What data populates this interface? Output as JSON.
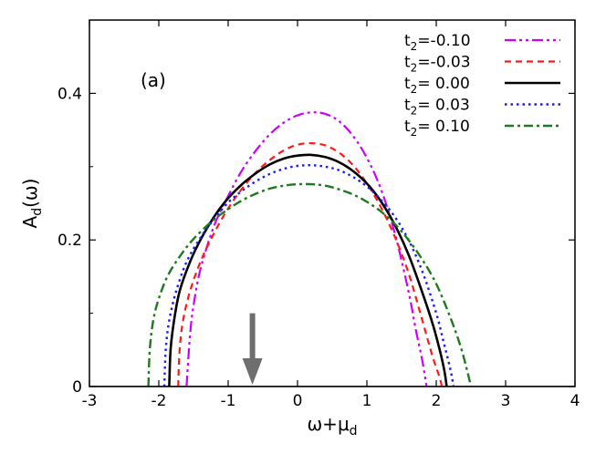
{
  "chart_data": {
    "type": "line",
    "panel_label": "(a)",
    "xlabel": {
      "main": "ω+μ",
      "sub": "d"
    },
    "ylabel": {
      "main": "A",
      "sub": "d",
      "tail": "(ω)"
    },
    "xlim": [
      -3,
      4
    ],
    "ylim": [
      0,
      0.5
    ],
    "x_ticks": [
      -3,
      -2,
      -1,
      0,
      1,
      2,
      3,
      4
    ],
    "x_tick_labels": [
      "-3",
      "-2",
      "-1",
      "0",
      "1",
      "2",
      "3",
      "4"
    ],
    "y_ticks": [
      0,
      0.2,
      0.4
    ],
    "y_tick_labels": [
      "0",
      "0.2",
      "0.4"
    ],
    "grid": false,
    "legend_position": "top-right",
    "arrow": {
      "x": -0.65,
      "y_top": 0.1,
      "y_bottom": 0.0,
      "color": "#6e6e6e"
    },
    "series": [
      {
        "name": "t2=-0.10",
        "label_main": "t",
        "label_sub": "2",
        "label_tail": "=-0.10",
        "color": "#cc00ff",
        "dash": "12,4,3,4,3,4",
        "width": 2.2,
        "x": [
          -1.6,
          -1.55,
          -1.5,
          -1.4,
          -1.2,
          -1.0,
          -0.8,
          -0.6,
          -0.4,
          -0.2,
          0.0,
          0.2,
          0.4,
          0.6,
          0.8,
          1.0,
          1.2,
          1.4,
          1.6,
          1.7,
          1.8,
          1.86
        ],
        "y": [
          0.0,
          0.07,
          0.11,
          0.16,
          0.22,
          0.26,
          0.295,
          0.322,
          0.344,
          0.36,
          0.37,
          0.374,
          0.372,
          0.362,
          0.342,
          0.312,
          0.27,
          0.21,
          0.13,
          0.08,
          0.035,
          0.0
        ]
      },
      {
        "name": "t2=-0.03",
        "label_main": "t",
        "label_sub": "2",
        "label_tail": "=-0.03",
        "color": "#ff1a1a",
        "dash": "7,5",
        "width": 2.2,
        "x": [
          -1.72,
          -1.7,
          -1.65,
          -1.55,
          -1.4,
          -1.2,
          -1.0,
          -0.8,
          -0.6,
          -0.4,
          -0.2,
          0.0,
          0.2,
          0.4,
          0.6,
          0.8,
          1.0,
          1.2,
          1.4,
          1.6,
          1.8,
          1.95,
          2.05,
          2.08
        ],
        "y": [
          0.0,
          0.05,
          0.09,
          0.13,
          0.17,
          0.21,
          0.243,
          0.27,
          0.292,
          0.309,
          0.322,
          0.33,
          0.332,
          0.329,
          0.319,
          0.302,
          0.277,
          0.245,
          0.205,
          0.155,
          0.09,
          0.04,
          0.012,
          0.0
        ]
      },
      {
        "name": "t2=0.00",
        "label_main": "t",
        "label_sub": "2",
        "label_tail": "= 0.00",
        "color": "#000000",
        "dash": "",
        "width": 2.6,
        "x": [
          -1.85,
          -1.83,
          -1.78,
          -1.7,
          -1.55,
          -1.4,
          -1.2,
          -1.0,
          -0.8,
          -0.6,
          -0.4,
          -0.2,
          0.0,
          0.2,
          0.4,
          0.6,
          0.8,
          1.0,
          1.2,
          1.4,
          1.6,
          1.8,
          1.95,
          2.05,
          2.12,
          2.15
        ],
        "y": [
          0.0,
          0.05,
          0.09,
          0.13,
          0.17,
          0.2,
          0.232,
          0.257,
          0.276,
          0.291,
          0.303,
          0.311,
          0.315,
          0.316,
          0.313,
          0.306,
          0.294,
          0.277,
          0.253,
          0.221,
          0.18,
          0.128,
          0.085,
          0.05,
          0.02,
          0.0
        ]
      },
      {
        "name": "t2=0.03",
        "label_main": "t",
        "label_sub": "2",
        "label_tail": "= 0.03",
        "color": "#1a1aff",
        "dash": "2.5,4",
        "width": 2.4,
        "x": [
          -1.92,
          -1.9,
          -1.85,
          -1.75,
          -1.6,
          -1.4,
          -1.2,
          -1.0,
          -0.8,
          -0.6,
          -0.4,
          -0.2,
          0.0,
          0.2,
          0.4,
          0.6,
          0.8,
          1.0,
          1.2,
          1.4,
          1.6,
          1.8,
          2.0,
          2.1,
          2.2,
          2.25
        ],
        "y": [
          0.0,
          0.05,
          0.09,
          0.13,
          0.17,
          0.203,
          0.229,
          0.251,
          0.267,
          0.28,
          0.29,
          0.297,
          0.301,
          0.302,
          0.3,
          0.295,
          0.286,
          0.273,
          0.255,
          0.232,
          0.2,
          0.157,
          0.1,
          0.063,
          0.025,
          0.0
        ]
      },
      {
        "name": "t2=0.10",
        "label_main": "t",
        "label_sub": "2",
        "label_tail": "= 0.10",
        "color": "#1f7a1f",
        "dash": "10,4,3,4",
        "width": 2.4,
        "x": [
          -2.15,
          -2.13,
          -2.08,
          -2.0,
          -1.85,
          -1.6,
          -1.4,
          -1.2,
          -1.0,
          -0.8,
          -0.6,
          -0.4,
          -0.2,
          0.0,
          0.2,
          0.4,
          0.6,
          0.8,
          1.0,
          1.2,
          1.4,
          1.6,
          1.8,
          2.0,
          2.2,
          2.35,
          2.45,
          2.5
        ],
        "y": [
          0.0,
          0.05,
          0.09,
          0.12,
          0.155,
          0.19,
          0.211,
          0.228,
          0.242,
          0.254,
          0.263,
          0.27,
          0.274,
          0.276,
          0.276,
          0.274,
          0.269,
          0.262,
          0.252,
          0.239,
          0.222,
          0.2,
          0.173,
          0.14,
          0.095,
          0.055,
          0.02,
          0.0
        ]
      }
    ]
  }
}
